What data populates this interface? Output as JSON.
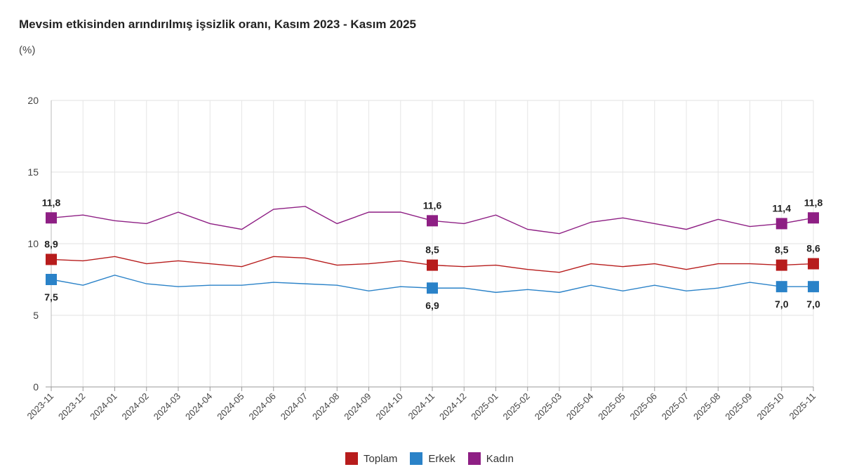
{
  "chart_data": {
    "type": "line",
    "title": "Mevsim etkisinden arındırılmış işsizlik oranı, Kasım 2023 - Kasım 2025",
    "ylabel": "(%)",
    "ylim": [
      0,
      20
    ],
    "yticks": [
      0,
      5,
      10,
      15,
      20
    ],
    "grid": true,
    "legend_position": "bottom",
    "categories": [
      "2023-11",
      "2023-12",
      "2024-01",
      "2024-02",
      "2024-03",
      "2024-04",
      "2024-05",
      "2024-06",
      "2024-07",
      "2024-08",
      "2024-09",
      "2024-10",
      "2024-11",
      "2024-12",
      "2025-01",
      "2025-02",
      "2025-03",
      "2025-04",
      "2025-05",
      "2025-06",
      "2025-07",
      "2025-08",
      "2025-09",
      "2025-10",
      "2025-11"
    ],
    "labeled_indices": [
      0,
      12,
      23,
      24
    ],
    "series": [
      {
        "name": "Toplam",
        "color": "#b71c1c",
        "values": [
          8.9,
          8.8,
          9.1,
          8.6,
          8.8,
          8.6,
          8.4,
          9.1,
          9.0,
          8.5,
          8.6,
          8.8,
          8.5,
          8.4,
          8.5,
          8.2,
          8.0,
          8.6,
          8.4,
          8.6,
          8.2,
          8.6,
          8.6,
          8.5,
          8.6
        ],
        "labels": [
          "8,9",
          "8,5",
          "8,5",
          "8,6"
        ]
      },
      {
        "name": "Erkek",
        "color": "#2a82c8",
        "values": [
          7.5,
          7.1,
          7.8,
          7.2,
          7.0,
          7.1,
          7.1,
          7.3,
          7.2,
          7.1,
          6.7,
          7.0,
          6.9,
          6.9,
          6.6,
          6.8,
          6.6,
          7.1,
          6.7,
          7.1,
          6.7,
          6.9,
          7.3,
          7.0,
          7.0
        ],
        "labels": [
          "7,5",
          "6,9",
          "7,0",
          "7,0"
        ]
      },
      {
        "name": "Kadın",
        "color": "#8e1f84",
        "values": [
          11.8,
          12.0,
          11.6,
          11.4,
          12.2,
          11.4,
          11.0,
          12.4,
          12.6,
          11.4,
          12.2,
          12.2,
          11.6,
          11.4,
          12.0,
          11.0,
          10.7,
          11.5,
          11.8,
          11.4,
          11.0,
          11.7,
          11.2,
          11.4,
          11.8
        ],
        "labels": [
          "11,8",
          "11,6",
          "11,4",
          "11,8"
        ]
      }
    ]
  }
}
